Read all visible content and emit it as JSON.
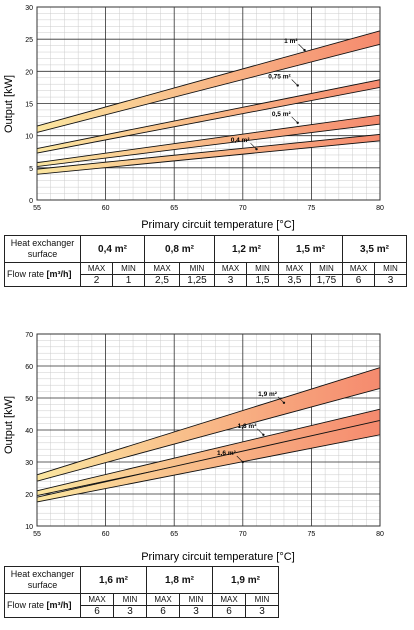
{
  "charts": [
    {
      "id": "chart1",
      "xlabel": "Primary circuit temperature [°C]",
      "ylabel": "Output [kW]",
      "xlim": [
        55,
        80
      ],
      "ylim": [
        0,
        30
      ],
      "xticks": [
        55,
        60,
        65,
        70,
        75,
        80
      ],
      "yticks": [
        0,
        5,
        10,
        15,
        20,
        25,
        30
      ],
      "bands": [
        {
          "label": "1 m²",
          "x": [
            55,
            80
          ],
          "upper": [
            11.5,
            26.3
          ],
          "lower": [
            10.5,
            24.2
          ],
          "label_at": [
            74.5,
            23.3
          ]
        },
        {
          "label": "0,75 m²",
          "x": [
            55,
            80
          ],
          "upper": [
            8.0,
            18.7
          ],
          "lower": [
            7.3,
            17.5
          ],
          "label_at": [
            74.0,
            17.8
          ]
        },
        {
          "label": "0,5 m²",
          "x": [
            55,
            80
          ],
          "upper": [
            5.8,
            13.2
          ],
          "lower": [
            5.2,
            11.8
          ],
          "label_at": [
            74.0,
            12.0
          ]
        },
        {
          "label": "0,4 m²",
          "x": [
            55,
            80
          ],
          "upper": [
            4.8,
            10.2
          ],
          "lower": [
            4.0,
            9.2
          ],
          "label_at": [
            71.0,
            7.9
          ]
        }
      ]
    },
    {
      "id": "chart2",
      "xlabel": "Primary circuit temperature [°C]",
      "ylabel": "Output [kW]",
      "xlim": [
        55,
        80
      ],
      "ylim": [
        10,
        70
      ],
      "xticks": [
        55,
        60,
        65,
        70,
        75,
        80
      ],
      "yticks": [
        10,
        20,
        30,
        40,
        50,
        60,
        70
      ],
      "bands": [
        {
          "label": "1,9 m²",
          "x": [
            55,
            80
          ],
          "upper": [
            26.0,
            59.5
          ],
          "lower": [
            24.0,
            53.0
          ],
          "label_at": [
            73.0,
            48.5
          ]
        },
        {
          "label": "1,8 m²",
          "x": [
            55,
            80
          ],
          "upper": [
            21.0,
            46.5
          ],
          "lower": [
            19.5,
            42.0
          ],
          "label_at": [
            71.5,
            38.5
          ]
        },
        {
          "label": "1,6 m²",
          "x": [
            55,
            80
          ],
          "upper": [
            19.0,
            43.0
          ],
          "lower": [
            17.5,
            38.5
          ],
          "label_at": [
            70.0,
            30.0
          ]
        }
      ]
    }
  ],
  "chart_data": [
    {
      "type": "area",
      "xlabel": "Primary circuit temperature [°C]",
      "ylabel": "Output [kW]",
      "xlim": [
        55,
        80
      ],
      "ylim": [
        0,
        30
      ],
      "grid": true,
      "series": [
        {
          "name": "1 m²",
          "x": [
            55,
            80
          ],
          "upper": [
            11.5,
            26.3
          ],
          "lower": [
            10.5,
            24.2
          ]
        },
        {
          "name": "0,75 m²",
          "x": [
            55,
            80
          ],
          "upper": [
            8.0,
            18.7
          ],
          "lower": [
            7.3,
            17.5
          ]
        },
        {
          "name": "0,5 m²",
          "x": [
            55,
            80
          ],
          "upper": [
            5.8,
            13.2
          ],
          "lower": [
            5.2,
            11.8
          ]
        },
        {
          "name": "0,4 m²",
          "x": [
            55,
            80
          ],
          "upper": [
            4.8,
            10.2
          ],
          "lower": [
            4.0,
            9.2
          ]
        }
      ]
    },
    {
      "type": "area",
      "xlabel": "Primary circuit temperature [°C]",
      "ylabel": "Output [kW]",
      "xlim": [
        55,
        80
      ],
      "ylim": [
        10,
        70
      ],
      "grid": true,
      "series": [
        {
          "name": "1,9 m²",
          "x": [
            55,
            80
          ],
          "upper": [
            26.0,
            59.5
          ],
          "lower": [
            24.0,
            53.0
          ]
        },
        {
          "name": "1,8 m²",
          "x": [
            55,
            80
          ],
          "upper": [
            21.0,
            46.5
          ],
          "lower": [
            19.5,
            42.0
          ]
        },
        {
          "name": "1,6 m²",
          "x": [
            55,
            80
          ],
          "upper": [
            19.0,
            43.0
          ],
          "lower": [
            17.5,
            38.5
          ]
        }
      ]
    }
  ],
  "table1": {
    "surface_label_1": "Heat exchanger",
    "surface_label_2": "surface",
    "flow_label": "Flow rate",
    "flow_unit": "[m³/h]",
    "max_label": "MAX",
    "min_label": "MIN",
    "surfaces": [
      "0,4 m²",
      "0,8 m²",
      "1,2 m²",
      "1,5 m²",
      "3,5 m²"
    ],
    "max_values": [
      "2",
      "2,5",
      "3",
      "3,5",
      "6"
    ],
    "min_values": [
      "1",
      "1,25",
      "1,5",
      "1,75",
      "3"
    ]
  },
  "table2": {
    "surface_label_1": "Heat exchanger",
    "surface_label_2": "surface",
    "flow_label": "Flow rate",
    "flow_unit": "[m³/h]",
    "max_label": "MAX",
    "min_label": "MIN",
    "surfaces": [
      "1,6 m²",
      "1,8 m²",
      "1,9 m²"
    ],
    "max_values": [
      "6",
      "6",
      "6"
    ],
    "min_values": [
      "3",
      "3",
      "3"
    ]
  },
  "colors": {
    "band_left": "#fbe6a0",
    "band_right": "#f58a6e",
    "grid_major": "#333333",
    "grid_minor": "#cccccc",
    "outline": "#111111"
  }
}
